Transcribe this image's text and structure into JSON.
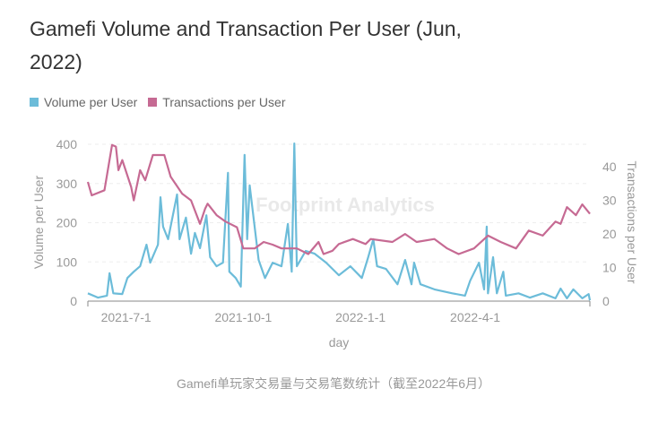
{
  "caption": "Gamefi单玩家交易量与交易笔数统计（截至2022年6月）",
  "watermark": "Footprint Analytics",
  "chart_data": {
    "type": "line",
    "title": "Gamefi Volume and Transaction Per User (Jun, 2022)",
    "xlabel": "day",
    "ylabel": "Volume per User",
    "ylabel_right": "Transactions per User",
    "xlim": [
      "2021-06-01",
      "2022-06-30"
    ],
    "ylim": [
      0,
      400
    ],
    "ylim_right": [
      0,
      46.7
    ],
    "x_ticks": [
      "2021-7-1",
      "2021-10-1",
      "2022-1-1",
      "2022-4-1"
    ],
    "y_ticks": [
      "0",
      "100",
      "200",
      "300",
      "400"
    ],
    "y_ticks_right": [
      "0",
      "10",
      "20",
      "30",
      "40"
    ],
    "grid": true,
    "legend": "top-left",
    "series": [
      {
        "name": "Volume per User",
        "axis": "left",
        "color": "#6cbcd9",
        "points": [
          [
            "2021-06-01",
            20
          ],
          [
            "2021-06-09",
            9
          ],
          [
            "2021-06-16",
            14
          ],
          [
            "2021-06-18",
            71
          ],
          [
            "2021-06-21",
            20
          ],
          [
            "2021-06-28",
            18
          ],
          [
            "2021-07-02",
            59
          ],
          [
            "2021-07-07",
            75
          ],
          [
            "2021-07-12",
            89
          ],
          [
            "2021-07-17",
            144
          ],
          [
            "2021-07-20",
            98
          ],
          [
            "2021-07-26",
            144
          ],
          [
            "2021-07-28",
            265
          ],
          [
            "2021-07-30",
            190
          ],
          [
            "2021-08-03",
            158
          ],
          [
            "2021-08-10",
            272
          ],
          [
            "2021-08-12",
            158
          ],
          [
            "2021-08-17",
            213
          ],
          [
            "2021-08-21",
            121
          ],
          [
            "2021-08-24",
            174
          ],
          [
            "2021-08-28",
            135
          ],
          [
            "2021-09-02",
            219
          ],
          [
            "2021-09-05",
            112
          ],
          [
            "2021-09-10",
            89
          ],
          [
            "2021-09-15",
            98
          ],
          [
            "2021-09-19",
            327
          ],
          [
            "2021-09-20",
            75
          ],
          [
            "2021-09-25",
            59
          ],
          [
            "2021-09-29",
            37
          ],
          [
            "2021-10-02",
            373
          ],
          [
            "2021-10-04",
            158
          ],
          [
            "2021-10-06",
            295
          ],
          [
            "2021-10-09",
            213
          ],
          [
            "2021-10-13",
            105
          ],
          [
            "2021-10-18",
            59
          ],
          [
            "2021-10-24",
            98
          ],
          [
            "2021-10-31",
            89
          ],
          [
            "2021-11-05",
            197
          ],
          [
            "2021-11-08",
            75
          ],
          [
            "2021-11-10",
            402
          ],
          [
            "2021-11-12",
            89
          ],
          [
            "2021-11-19",
            128
          ],
          [
            "2021-11-26",
            121
          ],
          [
            "2021-12-05",
            98
          ],
          [
            "2021-12-10",
            82
          ],
          [
            "2021-12-15",
            66
          ],
          [
            "2021-12-24",
            89
          ],
          [
            "2022-01-02",
            59
          ],
          [
            "2022-01-07",
            112
          ],
          [
            "2022-01-11",
            158
          ],
          [
            "2022-01-14",
            89
          ],
          [
            "2022-01-21",
            82
          ],
          [
            "2022-01-30",
            43
          ],
          [
            "2022-02-05",
            105
          ],
          [
            "2022-02-10",
            43
          ],
          [
            "2022-02-12",
            98
          ],
          [
            "2022-02-17",
            43
          ],
          [
            "2022-02-28",
            30
          ],
          [
            "2022-03-14",
            20
          ],
          [
            "2022-03-24",
            14
          ],
          [
            "2022-03-28",
            52
          ],
          [
            "2022-04-04",
            98
          ],
          [
            "2022-04-08",
            30
          ],
          [
            "2022-04-10",
            190
          ],
          [
            "2022-04-11",
            20
          ],
          [
            "2022-04-15",
            112
          ],
          [
            "2022-04-18",
            20
          ],
          [
            "2022-04-23",
            75
          ],
          [
            "2022-04-25",
            14
          ],
          [
            "2022-05-05",
            20
          ],
          [
            "2022-05-14",
            9
          ],
          [
            "2022-05-24",
            20
          ],
          [
            "2022-06-03",
            7
          ],
          [
            "2022-06-07",
            32
          ],
          [
            "2022-06-12",
            7
          ],
          [
            "2022-06-17",
            30
          ],
          [
            "2022-06-24",
            7
          ],
          [
            "2022-06-29",
            18
          ],
          [
            "2022-06-30",
            2
          ]
        ]
      },
      {
        "name": "Transactions per User",
        "axis": "right",
        "color": "#c66a93",
        "points": [
          [
            "2021-06-01",
            35.5
          ],
          [
            "2021-06-04",
            31.5
          ],
          [
            "2021-06-14",
            33
          ],
          [
            "2021-06-20",
            46.5
          ],
          [
            "2021-06-23",
            46
          ],
          [
            "2021-06-25",
            39
          ],
          [
            "2021-06-28",
            42
          ],
          [
            "2021-07-05",
            34
          ],
          [
            "2021-07-07",
            30
          ],
          [
            "2021-07-12",
            39
          ],
          [
            "2021-07-16",
            36
          ],
          [
            "2021-07-22",
            43.5
          ],
          [
            "2021-07-31",
            43.5
          ],
          [
            "2021-08-05",
            37
          ],
          [
            "2021-08-14",
            32
          ],
          [
            "2021-08-21",
            30
          ],
          [
            "2021-08-28",
            23
          ],
          [
            "2021-09-01",
            27.5
          ],
          [
            "2021-09-03",
            29
          ],
          [
            "2021-09-10",
            25.6
          ],
          [
            "2021-09-17",
            23.7
          ],
          [
            "2021-09-26",
            22
          ],
          [
            "2021-10-01",
            15.7
          ],
          [
            "2021-10-10",
            15.7
          ],
          [
            "2021-10-17",
            17.6
          ],
          [
            "2021-10-24",
            16.8
          ],
          [
            "2021-10-31",
            15.7
          ],
          [
            "2021-11-12",
            15.7
          ],
          [
            "2021-11-21",
            14
          ],
          [
            "2021-11-29",
            17.6
          ],
          [
            "2021-12-03",
            14
          ],
          [
            "2021-12-10",
            15
          ],
          [
            "2021-12-15",
            17
          ],
          [
            "2021-12-26",
            18.5
          ],
          [
            "2022-01-05",
            17
          ],
          [
            "2022-01-09",
            18.5
          ],
          [
            "2022-01-26",
            17.6
          ],
          [
            "2022-02-05",
            20
          ],
          [
            "2022-02-14",
            17.6
          ],
          [
            "2022-02-28",
            18.5
          ],
          [
            "2022-03-10",
            15.7
          ],
          [
            "2022-03-19",
            14
          ],
          [
            "2022-03-31",
            15.7
          ],
          [
            "2022-04-11",
            19.5
          ],
          [
            "2022-04-21",
            17.6
          ],
          [
            "2022-05-03",
            15.7
          ],
          [
            "2022-05-13",
            21
          ],
          [
            "2022-05-24",
            19.5
          ],
          [
            "2022-06-03",
            23.7
          ],
          [
            "2022-06-07",
            23
          ],
          [
            "2022-06-12",
            28
          ],
          [
            "2022-06-19",
            25.6
          ],
          [
            "2022-06-24",
            28.8
          ],
          [
            "2022-06-30",
            26
          ]
        ]
      }
    ]
  }
}
